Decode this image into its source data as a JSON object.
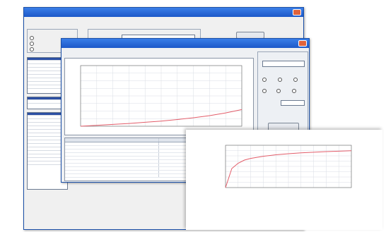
{
  "back_window": {
    "titlebar_text": "",
    "title": "",
    "id_label": ""
  },
  "curve_window": {
    "titlebar_text": "",
    "title": "",
    "chart_caption": "",
    "table_headers": [
      "",
      ""
    ],
    "table_rows": [
      [
        "",
        ""
      ],
      [
        "",
        ""
      ],
      [
        "",
        ""
      ],
      [
        "",
        ""
      ],
      [
        "",
        ""
      ],
      [
        "",
        ""
      ],
      [
        "",
        ""
      ],
      [
        "",
        ""
      ],
      [
        "",
        ""
      ],
      [
        "",
        ""
      ]
    ]
  },
  "report": {
    "title": "",
    "subtitle": "",
    "table_headers": [
      "",
      "",
      ""
    ]
  },
  "colors": {
    "titlebar": "#1c58c8",
    "curve": "#e35d6a",
    "title_text": "#1f3a78"
  },
  "chart_data": [
    {
      "type": "line",
      "title": "",
      "xlabel": "",
      "ylabel": "",
      "series": [
        {
          "x": [
            0,
            1,
            2,
            3,
            4,
            5,
            6,
            7,
            8,
            9,
            10
          ],
          "y": [
            0.0,
            0.03,
            0.06,
            0.09,
            0.13,
            0.17,
            0.22,
            0.28,
            0.35,
            0.44,
            0.55
          ]
        }
      ],
      "xlim": [
        0,
        10
      ],
      "ylim": [
        0,
        2.0
      ],
      "grid": true
    },
    {
      "type": "line",
      "title": "",
      "xlabel": "",
      "ylabel": "",
      "series": [
        {
          "x": [
            0,
            0.5,
            1,
            1.5,
            2,
            3,
            4,
            5,
            6,
            7,
            8,
            9,
            10
          ],
          "y": [
            0.0,
            0.9,
            1.15,
            1.3,
            1.38,
            1.48,
            1.55,
            1.6,
            1.64,
            1.67,
            1.7,
            1.72,
            1.74
          ]
        }
      ],
      "xlim": [
        0,
        10
      ],
      "ylim": [
        0,
        2.0
      ],
      "grid": true
    }
  ]
}
